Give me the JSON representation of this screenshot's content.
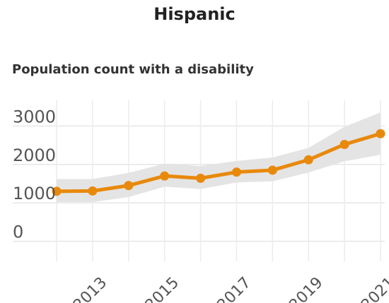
{
  "chart_data": {
    "type": "line",
    "title": "Hispanic",
    "subtitle": "Population count with a disability",
    "xlabel": "",
    "ylabel": "",
    "x": [
      2012,
      2013,
      2014,
      2015,
      2016,
      2017,
      2018,
      2019,
      2020,
      2021
    ],
    "x_ticks": [
      "2013",
      "2015",
      "2017",
      "2019",
      "2021"
    ],
    "y_ticks": [
      "0",
      "1000",
      "2000",
      "3000"
    ],
    "xlim": [
      2012,
      2021
    ],
    "ylim": [
      -300,
      3300
    ],
    "grid": true,
    "legend": "none",
    "series": [
      {
        "values": [
          1300,
          1310,
          1450,
          1700,
          1640,
          1800,
          1850,
          2120,
          2520,
          2800
        ],
        "lower": [
          1020,
          1020,
          1150,
          1420,
          1360,
          1530,
          1560,
          1790,
          2080,
          2250
        ],
        "upper": [
          1620,
          1620,
          1780,
          2020,
          1960,
          2090,
          2180,
          2430,
          2980,
          3350
        ],
        "color": "#E8890C",
        "band_color": "#e4e4e4"
      }
    ]
  }
}
